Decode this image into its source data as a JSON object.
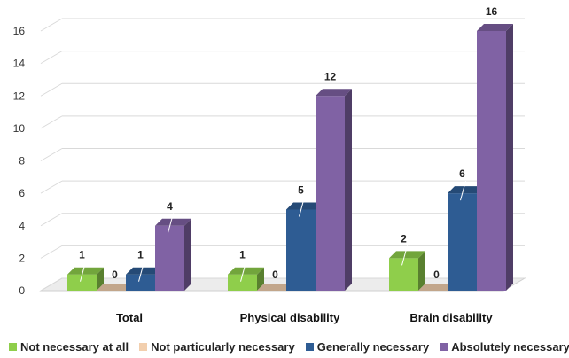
{
  "chart_data": {
    "type": "bar",
    "categories": [
      "Total",
      "Physical disability",
      "Brain disability"
    ],
    "series": [
      {
        "name": "Not necessary at all",
        "values": [
          1,
          1,
          2
        ],
        "color": "#8fce4b"
      },
      {
        "name": "Not particularly necessary",
        "values": [
          0,
          0,
          0
        ],
        "color": "#f2cfae"
      },
      {
        "name": "Generally necessary",
        "values": [
          1,
          5,
          6
        ],
        "color": "#2e5c93"
      },
      {
        "name": "Absolutely necessary",
        "values": [
          4,
          12,
          16
        ],
        "color": "#8062a4"
      }
    ],
    "yticks": [
      0,
      2,
      4,
      6,
      8,
      10,
      12,
      14,
      16
    ],
    "ylim": [
      0,
      16
    ],
    "title": "",
    "xlabel": "",
    "ylabel": "",
    "grid": true,
    "style": "3d-column",
    "legend_position": "bottom"
  }
}
